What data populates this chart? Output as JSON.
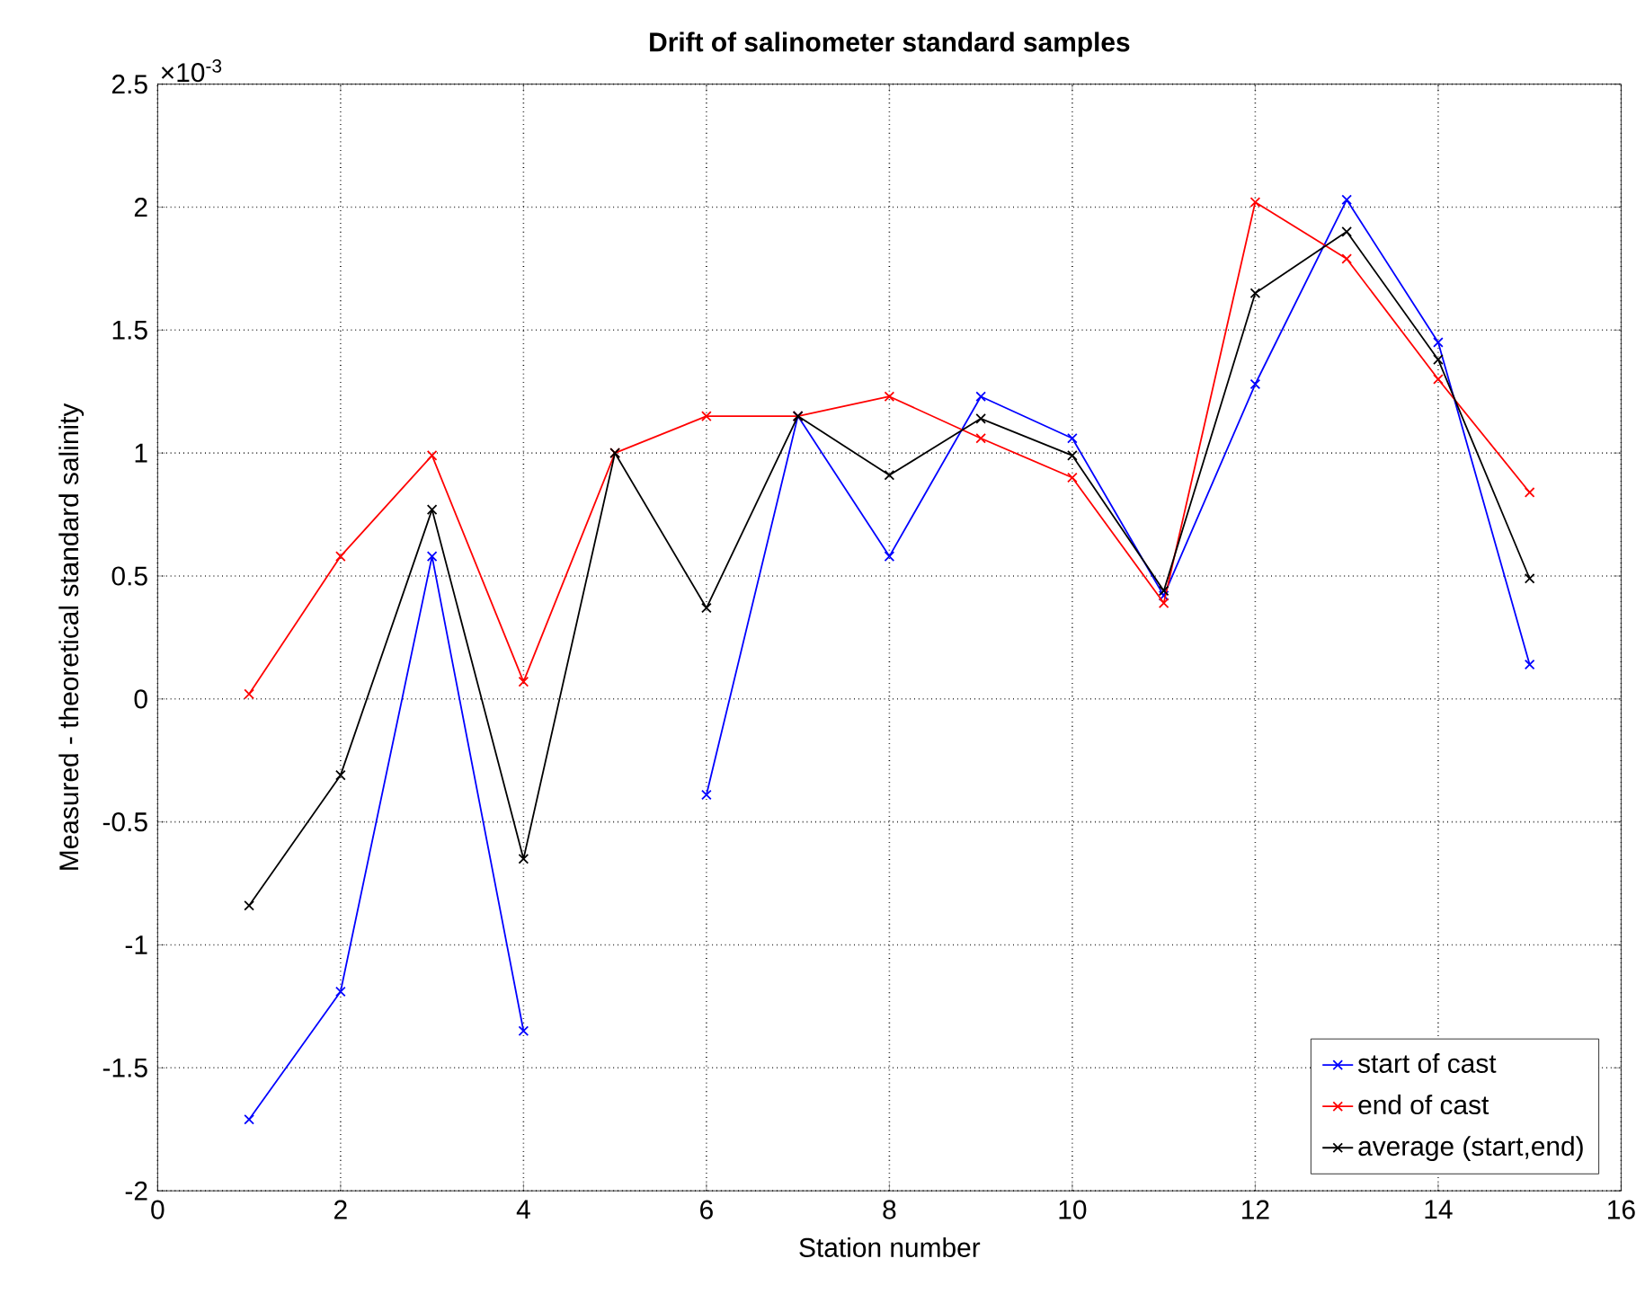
{
  "chart_data": {
    "type": "line",
    "title": "Drift of salinometer standard samples",
    "xlabel": "Station number",
    "ylabel": "Measured - theoretical standard salinity",
    "annotations": [
      "×10$^{-3}$"
    ],
    "x": [
      1,
      2,
      3,
      4,
      5,
      6,
      7,
      8,
      9,
      10,
      11,
      12,
      13,
      14,
      15
    ],
    "series": [
      {
        "name": "start of cast",
        "color": "#0000ff",
        "values": [
          -1.71,
          -1.19,
          0.58,
          -1.35,
          null,
          -0.39,
          1.15,
          0.58,
          1.23,
          1.06,
          0.42,
          1.28,
          2.03,
          1.45,
          0.14
        ]
      },
      {
        "name": "end of cast",
        "color": "#ff0000",
        "values": [
          0.02,
          0.58,
          0.99,
          0.07,
          1.0,
          1.15,
          1.15,
          1.23,
          1.06,
          0.9,
          0.39,
          2.02,
          1.79,
          1.3,
          0.84
        ]
      },
      {
        "name": "average (start,end)",
        "color": "#000000",
        "values": [
          -0.84,
          -0.31,
          0.77,
          -0.65,
          1.0,
          0.37,
          1.15,
          0.91,
          1.14,
          0.99,
          0.44,
          1.65,
          1.9,
          1.38,
          0.49
        ]
      }
    ],
    "xlim": [
      0,
      16
    ],
    "xticks": [
      0,
      2,
      4,
      6,
      8,
      10,
      12,
      14,
      16
    ],
    "ylim": [
      -2,
      2.5
    ],
    "yticks": [
      -2,
      -1.5,
      -1,
      -0.5,
      0,
      0.5,
      1,
      1.5,
      2,
      2.5
    ],
    "grid": true,
    "legend": "bottom right",
    "marker": "cross",
    "line_style": "solid"
  }
}
